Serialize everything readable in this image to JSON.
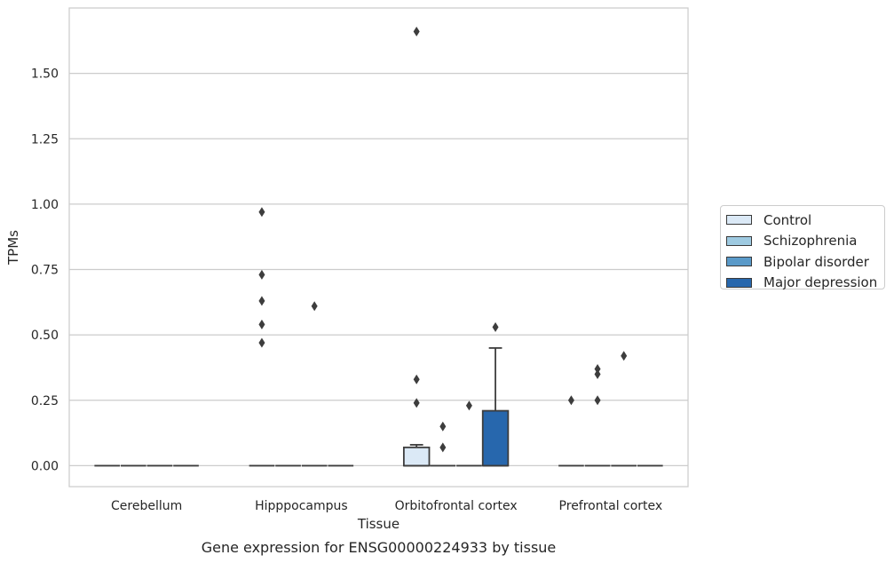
{
  "chart_data": {
    "type": "box",
    "title": "Gene expression for ENSG00000224933 by tissue",
    "xlabel": "Tissue",
    "ylabel": "TPMs",
    "ylim": [
      -0.08,
      1.75
    ],
    "yticks": [
      0.0,
      0.25,
      0.5,
      0.75,
      1.0,
      1.25,
      1.5
    ],
    "ytick_labels": [
      "0.00",
      "0.25",
      "0.50",
      "0.75",
      "1.00",
      "1.25",
      "1.50"
    ],
    "grid": "horizontal",
    "legend_position": "right-center",
    "categories": [
      "Cerebellum",
      "Hipppocampus",
      "Orbitofrontal cortex",
      "Prefrontal cortex"
    ],
    "series": [
      {
        "name": "Control",
        "color": "#dbe9f6",
        "boxes": [
          {
            "q1": 0,
            "median": 0,
            "q3": 0,
            "whisker_low": 0,
            "whisker_high": 0,
            "outliers": []
          },
          {
            "q1": 0,
            "median": 0,
            "q3": 0,
            "whisker_low": 0,
            "whisker_high": 0,
            "outliers": [
              0.47,
              0.54,
              0.63,
              0.73,
              0.97
            ]
          },
          {
            "q1": 0,
            "median": 0,
            "q3": 0.07,
            "whisker_low": 0,
            "whisker_high": 0.08,
            "outliers": [
              0.24,
              0.33,
              1.66
            ]
          },
          {
            "q1": 0,
            "median": 0,
            "q3": 0,
            "whisker_low": 0,
            "whisker_high": 0,
            "outliers": [
              0.25
            ]
          }
        ]
      },
      {
        "name": "Schizophrenia",
        "color": "#9ecae1",
        "boxes": [
          {
            "q1": 0,
            "median": 0,
            "q3": 0,
            "whisker_low": 0,
            "whisker_high": 0,
            "outliers": []
          },
          {
            "q1": 0,
            "median": 0,
            "q3": 0,
            "whisker_low": 0,
            "whisker_high": 0,
            "outliers": []
          },
          {
            "q1": 0,
            "median": 0,
            "q3": 0,
            "whisker_low": 0,
            "whisker_high": 0,
            "outliers": [
              0.07,
              0.15
            ]
          },
          {
            "q1": 0,
            "median": 0,
            "q3": 0,
            "whisker_low": 0,
            "whisker_high": 0,
            "outliers": [
              0.25,
              0.35,
              0.37
            ]
          }
        ]
      },
      {
        "name": "Bipolar disorder",
        "color": "#5a9ac9",
        "boxes": [
          {
            "q1": 0,
            "median": 0,
            "q3": 0,
            "whisker_low": 0,
            "whisker_high": 0,
            "outliers": []
          },
          {
            "q1": 0,
            "median": 0,
            "q3": 0,
            "whisker_low": 0,
            "whisker_high": 0,
            "outliers": [
              0.61
            ]
          },
          {
            "q1": 0,
            "median": 0,
            "q3": 0,
            "whisker_low": 0,
            "whisker_high": 0,
            "outliers": [
              0.23
            ]
          },
          {
            "q1": 0,
            "median": 0,
            "q3": 0,
            "whisker_low": 0,
            "whisker_high": 0,
            "outliers": [
              0.42
            ]
          }
        ]
      },
      {
        "name": "Major depression",
        "color": "#2767ad",
        "boxes": [
          {
            "q1": 0,
            "median": 0,
            "q3": 0,
            "whisker_low": 0,
            "whisker_high": 0,
            "outliers": []
          },
          {
            "q1": 0,
            "median": 0,
            "q3": 0,
            "whisker_low": 0,
            "whisker_high": 0,
            "outliers": []
          },
          {
            "q1": 0,
            "median": 0,
            "q3": 0.21,
            "whisker_low": 0,
            "whisker_high": 0.45,
            "outliers": [
              0.53
            ]
          },
          {
            "q1": 0,
            "median": 0,
            "q3": 0,
            "whisker_low": 0,
            "whisker_high": 0,
            "outliers": []
          }
        ]
      }
    ]
  }
}
